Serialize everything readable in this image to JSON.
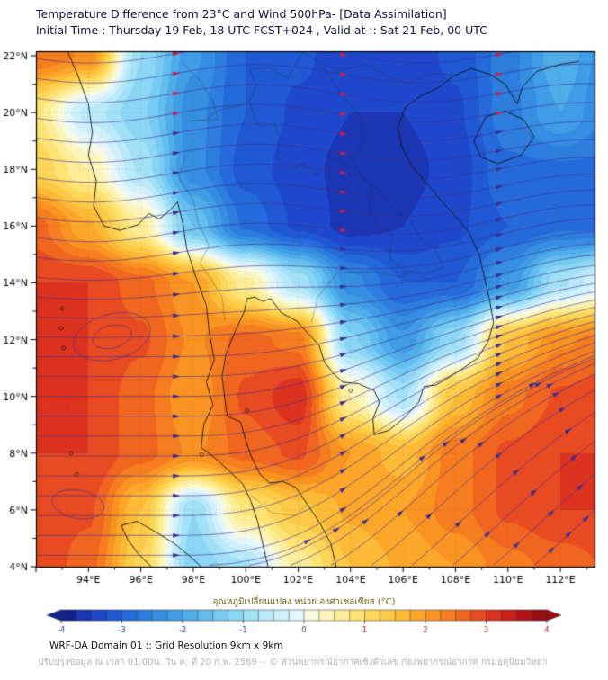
{
  "header": {
    "title_line1": "Temperature Difference from 23°C and Wind 500hPa- [Data Assimilation]",
    "title_line2": "Initial Time : Thursday 19 Feb, 18 UTC FCST+024 , Valid at ::  Sat 21 Feb, 00 UTC"
  },
  "colorbar": {
    "label": "อุณหภูมิเปลี่ยนแปลง หน่วย องศาเซลเซียส (°C)",
    "ticks": [
      -4,
      -3,
      -2,
      -1,
      0,
      1,
      2,
      3,
      4
    ],
    "tick_color_negative": "#2233aa",
    "tick_color_zero": "#333333",
    "tick_color_positive": "#aa2222"
  },
  "footer": {
    "line1": "WRF-DA Domain 01 :: Grid Resolution 9km x 9km",
    "line2": "ปรับปรุงข้อมูล ณ เวลา 01:00น. วัน ค. ที่ 20 ก.พ. 2569 -- © ส่วนพยากรณ์อากาศเชิงตัวเลข กองพยากรณ์อากาศ กรมอุตุนิยมวิทยา"
  },
  "chart_data": {
    "type": "heatmap",
    "title": "Temperature difference from 23°C (shaded) with 500 hPa wind streamlines",
    "units": "°C",
    "lon_range": [
      92.0,
      113.3
    ],
    "lat_range": [
      4.0,
      22.16
    ],
    "x_ticks": [
      {
        "v": 94,
        "label": "94°E"
      },
      {
        "v": 96,
        "label": "96°E"
      },
      {
        "v": 98,
        "label": "98°E"
      },
      {
        "v": 100,
        "label": "100°E"
      },
      {
        "v": 102,
        "label": "102°E"
      },
      {
        "v": 104,
        "label": "104°E"
      },
      {
        "v": 106,
        "label": "106°E"
      },
      {
        "v": 108,
        "label": "108°E"
      },
      {
        "v": 110,
        "label": "110°E"
      },
      {
        "v": 112,
        "label": "112°E"
      }
    ],
    "y_ticks": [
      {
        "v": 22,
        "label": "22°N"
      },
      {
        "v": 20,
        "label": "20°N"
      },
      {
        "v": 18,
        "label": "18°N"
      },
      {
        "v": 16,
        "label": "16°N"
      },
      {
        "v": 14,
        "label": "14°N"
      },
      {
        "v": 12,
        "label": "12°N"
      },
      {
        "v": 10,
        "label": "10°N"
      },
      {
        "v": 8,
        "label": "8°N"
      },
      {
        "v": 6,
        "label": "6°N"
      },
      {
        "v": 4,
        "label": "4°N"
      }
    ],
    "grid_lons": [
      92,
      94,
      96,
      98,
      100,
      102,
      104,
      106,
      108,
      110,
      112,
      114
    ],
    "grid_lats": [
      22,
      20,
      18,
      16,
      14,
      12,
      10,
      8,
      6,
      4
    ],
    "values": [
      [
        2.5,
        2.2,
        -1.0,
        -2.2,
        -3.0,
        -3.2,
        -3.4,
        -3.4,
        -3.2,
        -2.6,
        -1.8,
        -2.5
      ],
      [
        0.8,
        -0.6,
        -1.2,
        -2.4,
        -3.0,
        -3.3,
        -3.5,
        -3.5,
        -3.3,
        -2.6,
        -2.0,
        -2.6
      ],
      [
        1.2,
        0.5,
        -0.8,
        -2.4,
        -3.1,
        -3.4,
        -3.6,
        -3.6,
        -3.4,
        -2.8,
        -2.8,
        -2.8
      ],
      [
        2.6,
        1.8,
        0.6,
        -1.5,
        -2.8,
        -3.3,
        -3.6,
        -3.5,
        -3.3,
        -3.0,
        -2.8,
        -2.8
      ],
      [
        3.0,
        3.0,
        2.6,
        2.0,
        0.6,
        -0.8,
        -2.4,
        -3.0,
        -3.0,
        -2.2,
        -0.8,
        0.0
      ],
      [
        3.1,
        3.0,
        2.8,
        2.2,
        2.6,
        2.4,
        -1.2,
        -2.2,
        -1.0,
        1.5,
        2.2,
        2.4
      ],
      [
        3.0,
        3.0,
        2.6,
        2.0,
        2.8,
        3.2,
        0.5,
        -0.8,
        1.5,
        2.4,
        2.8,
        3.0
      ],
      [
        3.0,
        3.0,
        2.6,
        2.2,
        2.6,
        2.8,
        2.0,
        1.6,
        2.4,
        2.8,
        3.0,
        3.0
      ],
      [
        3.0,
        2.8,
        1.5,
        -1.0,
        0.8,
        1.4,
        1.8,
        2.0,
        2.4,
        2.8,
        3.0,
        3.0
      ],
      [
        3.0,
        2.6,
        1.2,
        -1.2,
        -0.8,
        0.6,
        1.5,
        1.8,
        2.0,
        2.4,
        2.6,
        2.8
      ]
    ],
    "contour_interval": 0.25,
    "colormap": [
      [
        -4.0,
        "#0f1678"
      ],
      [
        -3.5,
        "#1e41c8"
      ],
      [
        -3.0,
        "#2161d8"
      ],
      [
        -2.5,
        "#2f86e0"
      ],
      [
        -2.0,
        "#46a5e8"
      ],
      [
        -1.5,
        "#6cc5f0"
      ],
      [
        -1.0,
        "#97dcf6"
      ],
      [
        -0.5,
        "#c6eefb"
      ],
      [
        -0.1,
        "#e6f7fd"
      ],
      [
        0.1,
        "#f6fae2"
      ],
      [
        0.5,
        "#fdf2a9"
      ],
      [
        1.0,
        "#fede63"
      ],
      [
        1.5,
        "#fdc33e"
      ],
      [
        2.0,
        "#fb9e23"
      ],
      [
        2.5,
        "#f4721f"
      ],
      [
        3.0,
        "#e43c21"
      ],
      [
        3.5,
        "#c01618"
      ],
      [
        4.0,
        "#8a0a10"
      ]
    ],
    "style": {
      "graticule_color": "rgba(70,70,70,0.38)",
      "coast_color": "#141414",
      "coast_width": 1.0,
      "border_color": "#262626",
      "border_width": 0.65,
      "border_alpha": 0.5,
      "frame_color": "#000000",
      "tick_label_color": "#000000"
    },
    "coastlines": [
      [
        [
          93.2,
          22.16
        ],
        [
          93.6,
          21.3
        ],
        [
          94.0,
          20.3
        ],
        [
          94.15,
          19.3
        ],
        [
          94.0,
          18.5
        ],
        [
          94.3,
          17.6
        ],
        [
          94.2,
          16.7
        ],
        [
          94.6,
          16.0
        ],
        [
          95.2,
          15.85
        ],
        [
          95.9,
          16.05
        ],
        [
          96.3,
          16.45
        ],
        [
          96.7,
          16.25
        ],
        [
          97.1,
          16.55
        ],
        [
          97.4,
          16.85
        ],
        [
          97.6,
          16.1
        ],
        [
          97.75,
          15.2
        ],
        [
          98.1,
          14.2
        ],
        [
          98.5,
          13.2
        ],
        [
          98.6,
          12.3
        ],
        [
          98.8,
          11.3
        ],
        [
          98.5,
          10.5
        ],
        [
          98.75,
          9.7
        ],
        [
          98.4,
          9.0
        ],
        [
          98.3,
          8.2
        ],
        [
          98.8,
          7.85
        ],
        [
          99.4,
          7.35
        ],
        [
          99.9,
          6.9
        ],
        [
          100.2,
          6.3
        ],
        [
          100.45,
          5.6
        ],
        [
          100.65,
          4.8
        ],
        [
          100.85,
          4.0
        ]
      ],
      [
        [
          103.45,
          4.0
        ],
        [
          103.25,
          4.8
        ],
        [
          102.85,
          5.5
        ],
        [
          102.35,
          6.2
        ],
        [
          101.9,
          6.8
        ],
        [
          101.4,
          7.0
        ],
        [
          100.9,
          6.95
        ],
        [
          100.55,
          7.25
        ],
        [
          100.2,
          7.9
        ],
        [
          100.0,
          8.45
        ],
        [
          99.8,
          9.1
        ],
        [
          99.3,
          9.3
        ],
        [
          99.2,
          9.9
        ],
        [
          99.1,
          10.7
        ],
        [
          99.25,
          11.5
        ],
        [
          99.6,
          12.3
        ],
        [
          99.95,
          13.0
        ],
        [
          100.05,
          13.45
        ],
        [
          100.35,
          13.5
        ],
        [
          100.65,
          13.35
        ],
        [
          100.95,
          13.45
        ],
        [
          101.35,
          12.95
        ],
        [
          101.95,
          12.65
        ],
        [
          102.4,
          12.2
        ],
        [
          102.8,
          11.8
        ],
        [
          103.0,
          11.2
        ],
        [
          103.35,
          10.8
        ],
        [
          103.7,
          10.5
        ],
        [
          104.3,
          10.45
        ],
        [
          104.9,
          10.2
        ],
        [
          105.1,
          9.8
        ],
        [
          104.85,
          9.2
        ],
        [
          104.9,
          8.65
        ],
        [
          105.45,
          8.8
        ],
        [
          106.05,
          9.25
        ],
        [
          106.6,
          9.8
        ],
        [
          106.8,
          10.35
        ],
        [
          107.25,
          10.4
        ],
        [
          107.8,
          10.7
        ],
        [
          108.3,
          11.0
        ],
        [
          108.85,
          11.35
        ],
        [
          109.25,
          11.95
        ],
        [
          109.45,
          12.6
        ],
        [
          109.3,
          13.4
        ],
        [
          109.1,
          14.2
        ],
        [
          108.9,
          15.0
        ],
        [
          108.5,
          15.8
        ],
        [
          107.95,
          16.4
        ],
        [
          107.45,
          16.9
        ],
        [
          106.95,
          17.45
        ],
        [
          106.35,
          18.1
        ],
        [
          105.95,
          18.8
        ],
        [
          105.8,
          19.5
        ],
        [
          106.1,
          20.2
        ],
        [
          106.7,
          20.6
        ],
        [
          107.3,
          20.85
        ],
        [
          107.95,
          21.3
        ],
        [
          108.6,
          21.55
        ],
        [
          109.3,
          21.35
        ],
        [
          109.9,
          21.0
        ],
        [
          110.35,
          20.3
        ],
        [
          110.55,
          20.9
        ],
        [
          111.1,
          21.45
        ],
        [
          112.0,
          21.7
        ],
        [
          112.7,
          21.8
        ]
      ],
      [
        [
          108.7,
          19.0
        ],
        [
          109.15,
          19.85
        ],
        [
          109.9,
          20.05
        ],
        [
          110.6,
          19.75
        ],
        [
          111.0,
          19.15
        ],
        [
          110.5,
          18.5
        ],
        [
          109.6,
          18.2
        ],
        [
          108.95,
          18.45
        ],
        [
          108.7,
          19.0
        ]
      ],
      [
        [
          96.4,
          4.0
        ],
        [
          95.9,
          4.45
        ],
        [
          95.5,
          4.95
        ],
        [
          95.25,
          5.45
        ],
        [
          95.85,
          5.6
        ],
        [
          96.6,
          5.2
        ],
        [
          97.3,
          4.8
        ],
        [
          97.95,
          4.3
        ],
        [
          98.35,
          3.95
        ]
      ]
    ],
    "borders": [
      [
        [
          97.7,
          18.5
        ],
        [
          97.45,
          17.7
        ],
        [
          98.0,
          16.9
        ],
        [
          98.2,
          16.1
        ],
        [
          98.6,
          15.3
        ],
        [
          98.25,
          14.7
        ],
        [
          98.7,
          14.1
        ],
        [
          99.1,
          13.5
        ],
        [
          99.2,
          12.7
        ]
      ],
      [
        [
          97.9,
          19.7
        ],
        [
          98.5,
          19.75
        ],
        [
          99.0,
          20.1
        ],
        [
          99.6,
          20.2
        ],
        [
          100.15,
          20.4
        ],
        [
          100.35,
          19.8
        ],
        [
          100.55,
          19.5
        ],
        [
          101.1,
          19.6
        ],
        [
          101.3,
          19.1
        ],
        [
          101.2,
          18.4
        ],
        [
          101.75,
          18.0
        ],
        [
          102.15,
          18.2
        ],
        [
          102.7,
          17.8
        ],
        [
          103.4,
          18.4
        ],
        [
          104.05,
          18.0
        ],
        [
          104.8,
          17.4
        ],
        [
          104.7,
          16.5
        ],
        [
          105.05,
          16.1
        ],
        [
          105.6,
          15.7
        ],
        [
          105.5,
          14.9
        ],
        [
          106.0,
          14.45
        ],
        [
          106.8,
          14.3
        ],
        [
          107.55,
          14.55
        ]
      ],
      [
        [
          102.5,
          12.6
        ],
        [
          102.75,
          13.5
        ],
        [
          103.5,
          14.35
        ],
        [
          104.8,
          14.4
        ],
        [
          105.9,
          14.2
        ],
        [
          106.4,
          14.45
        ]
      ],
      [
        [
          102.95,
          21.6
        ],
        [
          103.6,
          20.7
        ],
        [
          104.35,
          19.9
        ],
        [
          104.55,
          19.0
        ],
        [
          103.95,
          18.4
        ],
        [
          104.6,
          17.6
        ],
        [
          105.15,
          17.2
        ],
        [
          105.6,
          16.6
        ],
        [
          106.3,
          16.2
        ],
        [
          106.6,
          15.6
        ],
        [
          107.2,
          15.2
        ],
        [
          107.55,
          14.55
        ]
      ],
      [
        [
          97.55,
          21.8
        ],
        [
          98.2,
          21.2
        ],
        [
          98.75,
          20.4
        ],
        [
          98.95,
          19.75
        ],
        [
          97.9,
          19.7
        ]
      ],
      [
        [
          102.15,
          22.16
        ],
        [
          102.9,
          21.7
        ],
        [
          103.7,
          21.5
        ],
        [
          104.6,
          21.7
        ],
        [
          105.4,
          21.3
        ],
        [
          106.2,
          21.0
        ],
        [
          106.75,
          21.3
        ],
        [
          107.4,
          21.4
        ],
        [
          107.95,
          21.3
        ]
      ],
      [
        [
          100.2,
          6.5
        ],
        [
          101.0,
          5.9
        ],
        [
          101.9,
          5.8
        ],
        [
          102.35,
          6.2
        ]
      ],
      [
        [
          100.15,
          20.4
        ],
        [
          100.4,
          21.0
        ],
        [
          100.15,
          21.5
        ],
        [
          100.9,
          21.6
        ],
        [
          101.6,
          21.2
        ],
        [
          102.15,
          22.1
        ]
      ]
    ],
    "islands": [
      [
        93.0,
        13.1
      ],
      [
        92.95,
        12.4
      ],
      [
        93.05,
        11.7
      ],
      [
        93.35,
        8.0
      ],
      [
        93.55,
        7.25
      ],
      [
        98.32,
        7.95
      ],
      [
        100.05,
        9.5
      ],
      [
        104.0,
        10.2
      ]
    ],
    "wind": {
      "line_color": "#3f2d91",
      "line_width": 0.75,
      "line_alpha": 0.8,
      "arrow_warm_color": "#3f2d91",
      "arrow_cold_color": "#c42050",
      "arrow_red_lat_threshold": 19.5,
      "arrow_red_anomaly_threshold": -3.35,
      "field": {
        "north_amp": 0.16,
        "north_freq": 0.5,
        "north_phase": 94,
        "north_lat_start": 11,
        "north_lat_ramp": 5,
        "se_amp": 0.85,
        "se_lon_start": 97,
        "se_lon_ramp": 10,
        "se_lat_center": 5.5,
        "se_lat_width": 6.5
      },
      "seeds_left": {
        "lat_from": 4.4,
        "lat_to": 22.1,
        "step": 0.7
      },
      "seeds_bottom": {
        "lon_from": 98.6,
        "lon_to": 112.8,
        "step": 1.55
      },
      "step_dlon": 0.22,
      "arrow_fractions": [
        0.25,
        0.55,
        0.82
      ],
      "eddies": [
        {
          "lon": 94.9,
          "lat": 12.1,
          "rx": 1.5,
          "ry": 0.8,
          "rot": -15
        },
        {
          "lon": 94.9,
          "lat": 12.1,
          "rx": 0.75,
          "ry": 0.4,
          "rot": -15
        },
        {
          "lon": 93.6,
          "lat": 6.2,
          "rx": 1.0,
          "ry": 0.5,
          "rot": 10
        }
      ]
    }
  }
}
